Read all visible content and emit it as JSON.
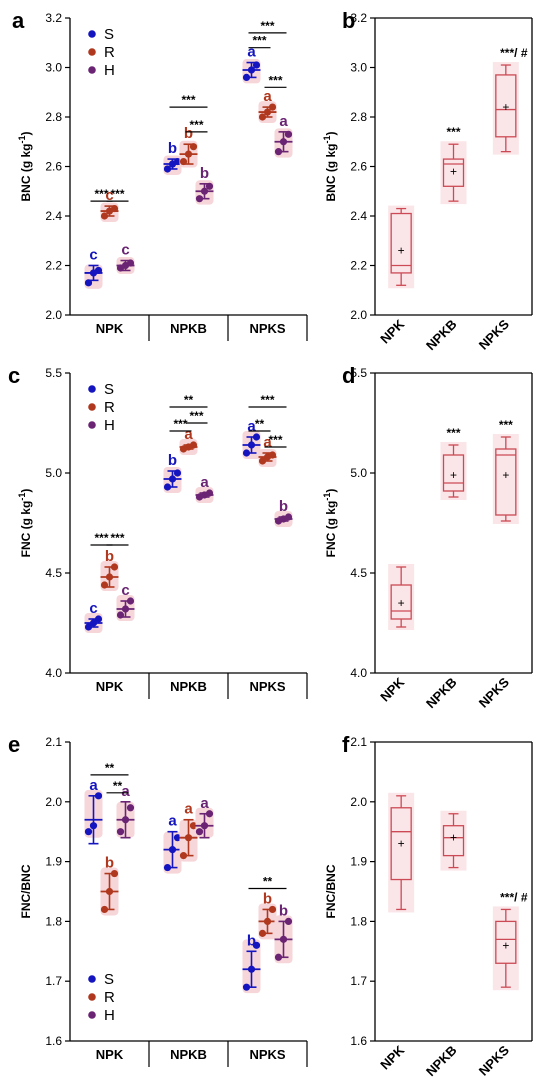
{
  "colors": {
    "S": "#1515c0",
    "R": "#b0381e",
    "H": "#6a2473",
    "box": "#cc4a55",
    "halo": "#f6d6d9",
    "axis": "#000000"
  },
  "chart_data": [
    {
      "panel": "a",
      "type": "scatter",
      "ylabel": "BNC (g kg-1)",
      "ylim": [
        2.0,
        3.2
      ],
      "yticks": [
        "2.0",
        "2.2",
        "2.4",
        "2.6",
        "2.8",
        "3.0",
        "3.2"
      ],
      "categories": [
        "NPK",
        "NPKB",
        "NPKS"
      ],
      "legend": {
        "placement": "top-left",
        "entries": [
          "S",
          "R",
          "H"
        ]
      },
      "series": [
        {
          "name": "S",
          "mean": [
            2.17,
            2.61,
            2.99
          ],
          "sd": [
            0.03,
            0.02,
            0.03
          ],
          "points": [
            [
              2.13,
              2.17,
              2.18
            ],
            [
              2.59,
              2.61,
              2.62
            ],
            [
              2.96,
              2.99,
              3.01
            ]
          ],
          "letters": [
            "c",
            "b",
            "a"
          ]
        },
        {
          "name": "R",
          "mean": [
            2.42,
            2.65,
            2.82
          ],
          "sd": [
            0.02,
            0.04,
            0.02
          ],
          "points": [
            [
              2.4,
              2.42,
              2.43
            ],
            [
              2.62,
              2.65,
              2.68
            ],
            [
              2.8,
              2.82,
              2.84
            ]
          ],
          "letters": [
            "c",
            "b",
            "a"
          ]
        },
        {
          "name": "H",
          "mean": [
            2.2,
            2.5,
            2.7
          ],
          "sd": [
            0.02,
            0.03,
            0.04
          ],
          "points": [
            [
              2.19,
              2.2,
              2.21
            ],
            [
              2.47,
              2.5,
              2.52
            ],
            [
              2.66,
              2.7,
              2.73
            ]
          ],
          "letters": [
            "c",
            "b",
            "a"
          ]
        }
      ],
      "brackets": [
        {
          "group": 0,
          "from": 0,
          "to": 1,
          "y": 2.46,
          "label": "***"
        },
        {
          "group": 0,
          "from": 1,
          "to": 2,
          "y": 2.46,
          "label": "***"
        },
        {
          "group": 1,
          "from": 0,
          "to": 2,
          "y": 2.84,
          "label": "***"
        },
        {
          "group": 1,
          "from": 1,
          "to": 2,
          "y": 2.74,
          "label": "***"
        },
        {
          "group": 2,
          "from": 0,
          "to": 2,
          "y": 3.14,
          "label": "***"
        },
        {
          "group": 2,
          "from": 0,
          "to": 1,
          "y": 3.08,
          "label": "***"
        },
        {
          "group": 2,
          "from": 1,
          "to": 2,
          "y": 2.92,
          "label": "***"
        }
      ]
    },
    {
      "panel": "b",
      "type": "box",
      "ylabel": "BNC (g kg-1)",
      "ylim": [
        2.0,
        3.2
      ],
      "yticks": [
        "2.0",
        "2.2",
        "2.4",
        "2.6",
        "2.8",
        "3.0",
        "3.2"
      ],
      "categories": [
        "NPK",
        "NPKB",
        "NPKS"
      ],
      "boxes": [
        {
          "min": 2.12,
          "q1": 2.17,
          "median": 2.2,
          "q3": 2.41,
          "max": 2.43,
          "mean": 2.26,
          "label": ""
        },
        {
          "min": 2.46,
          "q1": 2.52,
          "median": 2.61,
          "q3": 2.63,
          "max": 2.69,
          "mean": 2.58,
          "label": "***"
        },
        {
          "min": 2.66,
          "q1": 2.72,
          "median": 2.83,
          "q3": 2.97,
          "max": 3.01,
          "mean": 2.84,
          "label": "***/ #"
        }
      ]
    },
    {
      "panel": "c",
      "type": "scatter",
      "ylabel": "FNC (g kg-1)",
      "ylim": [
        4.0,
        5.5
      ],
      "yticks": [
        "4.0",
        "4.5",
        "5.0",
        "5.5"
      ],
      "categories": [
        "NPK",
        "NPKB",
        "NPKS"
      ],
      "legend": {
        "placement": "top-left",
        "entries": [
          "S",
          "R",
          "H"
        ]
      },
      "series": [
        {
          "name": "S",
          "mean": [
            4.25,
            4.97,
            5.14
          ],
          "sd": [
            0.02,
            0.04,
            0.04
          ],
          "points": [
            [
              4.23,
              4.25,
              4.27
            ],
            [
              4.93,
              4.97,
              5.0
            ],
            [
              5.1,
              5.14,
              5.18
            ]
          ],
          "letters": [
            "c",
            "b",
            "a"
          ]
        },
        {
          "name": "R",
          "mean": [
            4.48,
            5.13,
            5.08
          ],
          "sd": [
            0.05,
            0.01,
            0.02
          ],
          "points": [
            [
              4.44,
              4.48,
              4.53
            ],
            [
              5.12,
              5.13,
              5.14
            ],
            [
              5.06,
              5.08,
              5.09
            ]
          ],
          "letters": [
            "b",
            "a",
            "a"
          ]
        },
        {
          "name": "H",
          "mean": [
            4.32,
            4.89,
            4.77
          ],
          "sd": [
            0.04,
            0.01,
            0.01
          ],
          "points": [
            [
              4.29,
              4.32,
              4.36
            ],
            [
              4.88,
              4.89,
              4.9
            ],
            [
              4.76,
              4.77,
              4.78
            ]
          ],
          "letters": [
            "c",
            "a",
            "b"
          ]
        }
      ],
      "brackets": [
        {
          "group": 0,
          "from": 0,
          "to": 1,
          "y": 4.64,
          "label": "***"
        },
        {
          "group": 0,
          "from": 1,
          "to": 2,
          "y": 4.64,
          "label": "***"
        },
        {
          "group": 1,
          "from": 0,
          "to": 2,
          "y": 5.33,
          "label": "**"
        },
        {
          "group": 1,
          "from": 0,
          "to": 1,
          "y": 5.21,
          "label": "***"
        },
        {
          "group": 1,
          "from": 1,
          "to": 2,
          "y": 5.25,
          "label": "***"
        },
        {
          "group": 2,
          "from": 0,
          "to": 2,
          "y": 5.33,
          "label": "***"
        },
        {
          "group": 2,
          "from": 0,
          "to": 1,
          "y": 5.21,
          "label": "**"
        },
        {
          "group": 2,
          "from": 1,
          "to": 2,
          "y": 5.13,
          "label": "***"
        }
      ]
    },
    {
      "panel": "d",
      "type": "box",
      "ylabel": "FNC (g kg-1)",
      "ylim": [
        4.0,
        5.5
      ],
      "yticks": [
        "4.0",
        "4.5",
        "5.0",
        "5.5"
      ],
      "categories": [
        "NPK",
        "NPKB",
        "NPKS"
      ],
      "boxes": [
        {
          "min": 4.23,
          "q1": 4.27,
          "median": 4.31,
          "q3": 4.44,
          "max": 4.53,
          "mean": 4.35,
          "label": ""
        },
        {
          "min": 4.88,
          "q1": 4.91,
          "median": 4.95,
          "q3": 5.09,
          "max": 5.14,
          "mean": 4.99,
          "label": "***"
        },
        {
          "min": 4.76,
          "q1": 4.79,
          "median": 5.09,
          "q3": 5.12,
          "max": 5.18,
          "mean": 4.99,
          "label": "***"
        }
      ]
    },
    {
      "panel": "e",
      "type": "scatter",
      "ylabel": "FNC/BNC",
      "ylim": [
        1.6,
        2.1
      ],
      "yticks": [
        "1.6",
        "1.7",
        "1.8",
        "1.9",
        "2.0",
        "2.1"
      ],
      "categories": [
        "NPK",
        "NPKB",
        "NPKS"
      ],
      "legend": {
        "placement": "bottom-left",
        "entries": [
          "S",
          "R",
          "H"
        ]
      },
      "series": [
        {
          "name": "S",
          "mean": [
            1.97,
            1.92,
            1.72
          ],
          "sd": [
            0.04,
            0.03,
            0.03
          ],
          "points": [
            [
              1.95,
              1.96,
              2.01
            ],
            [
              1.89,
              1.92,
              1.94
            ],
            [
              1.69,
              1.72,
              1.76
            ]
          ],
          "letters": [
            "a",
            "a",
            "b"
          ]
        },
        {
          "name": "R",
          "mean": [
            1.85,
            1.94,
            1.8
          ],
          "sd": [
            0.03,
            0.03,
            0.02
          ],
          "points": [
            [
              1.82,
              1.85,
              1.88
            ],
            [
              1.91,
              1.94,
              1.96
            ],
            [
              1.78,
              1.8,
              1.82
            ]
          ],
          "letters": [
            "b",
            "a",
            "b"
          ]
        },
        {
          "name": "H",
          "mean": [
            1.97,
            1.96,
            1.77
          ],
          "sd": [
            0.03,
            0.02,
            0.03
          ],
          "points": [
            [
              1.95,
              1.97,
              1.99
            ],
            [
              1.95,
              1.96,
              1.98
            ],
            [
              1.74,
              1.77,
              1.8
            ]
          ],
          "letters": [
            "a",
            "a",
            "b"
          ]
        }
      ],
      "brackets": [
        {
          "group": 0,
          "from": 0,
          "to": 2,
          "y": 2.045,
          "label": "**"
        },
        {
          "group": 0,
          "from": 1,
          "to": 2,
          "y": 2.015,
          "label": "**"
        },
        {
          "group": 2,
          "from": 0,
          "to": 2,
          "y": 1.855,
          "label": "**"
        }
      ]
    },
    {
      "panel": "f",
      "type": "box",
      "ylabel": "FNC/BNC",
      "ylim": [
        1.6,
        2.1
      ],
      "yticks": [
        "1.6",
        "1.7",
        "1.8",
        "1.9",
        "2.0",
        "2.1"
      ],
      "categories": [
        "NPK",
        "NPKB",
        "NPKS"
      ],
      "boxes": [
        {
          "min": 1.82,
          "q1": 1.87,
          "median": 1.95,
          "q3": 1.99,
          "max": 2.01,
          "mean": 1.93,
          "label": ""
        },
        {
          "min": 1.89,
          "q1": 1.91,
          "median": 1.94,
          "q3": 1.96,
          "max": 1.98,
          "mean": 1.94,
          "label": ""
        },
        {
          "min": 1.69,
          "q1": 1.73,
          "median": 1.77,
          "q3": 1.8,
          "max": 1.82,
          "mean": 1.76,
          "label": "***/ #"
        }
      ]
    }
  ]
}
